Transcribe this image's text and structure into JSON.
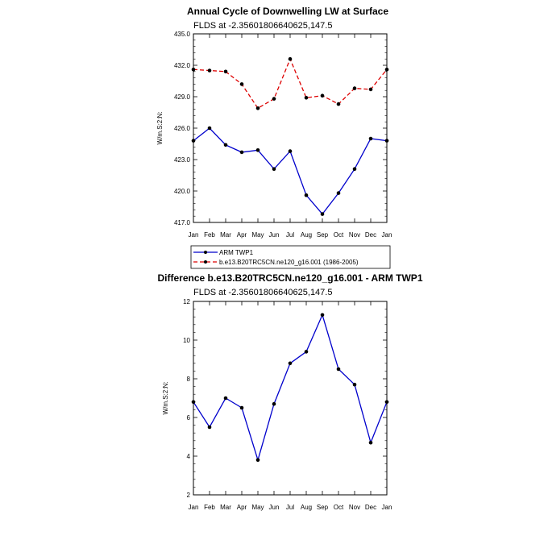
{
  "chart_data": [
    {
      "type": "line",
      "title": "Annual Cycle of Downwelling LW at Surface",
      "subtitle": "FLDS at -2.35601806640625,147.5",
      "ylabel": "W/m.S:2:N:",
      "ylim": [
        417.0,
        435.0
      ],
      "yticks": [
        "417.0",
        "420.0",
        "423.0",
        "426.0",
        "429.0",
        "432.0",
        "435.0"
      ],
      "categories": [
        "Jan",
        "Feb",
        "Mar",
        "Apr",
        "May",
        "Jun",
        "Jul",
        "Aug",
        "Sep",
        "Oct",
        "Nov",
        "Dec",
        "Jan"
      ],
      "series": [
        {
          "name": "ARM TWP1",
          "color": "#0000cc",
          "dash": "none",
          "values": [
            424.8,
            426.0,
            424.4,
            423.7,
            423.9,
            422.1,
            423.8,
            419.6,
            417.8,
            419.8,
            422.1,
            425.0,
            424.8
          ]
        },
        {
          "name": "b.e13.B20TRC5CN.ne120_g16.001 (1986-2005)",
          "color": "#dd0000",
          "dash": "5,3",
          "values": [
            431.6,
            431.5,
            431.4,
            430.2,
            427.9,
            428.8,
            432.6,
            428.9,
            429.1,
            428.3,
            429.8,
            429.7,
            431.6
          ]
        }
      ]
    },
    {
      "type": "line",
      "title": "Difference b.e13.B20TRC5CN.ne120_g16.001 - ARM TWP1",
      "subtitle": "FLDS at -2.35601806640625,147.5",
      "ylabel": "W/m.S:2:N:",
      "ylim": [
        2,
        12
      ],
      "yticks": [
        "2",
        "4",
        "6",
        "8",
        "10",
        "12"
      ],
      "categories": [
        "Jan",
        "Feb",
        "Mar",
        "Apr",
        "May",
        "Jun",
        "Jul",
        "Aug",
        "Sep",
        "Oct",
        "Nov",
        "Dec",
        "Jan"
      ],
      "series": [
        {
          "name": "Difference",
          "color": "#0000cc",
          "dash": "none",
          "values": [
            6.8,
            5.5,
            7.0,
            6.5,
            3.8,
            6.7,
            8.8,
            9.4,
            11.3,
            8.5,
            7.7,
            4.7,
            6.8
          ]
        }
      ]
    }
  ]
}
